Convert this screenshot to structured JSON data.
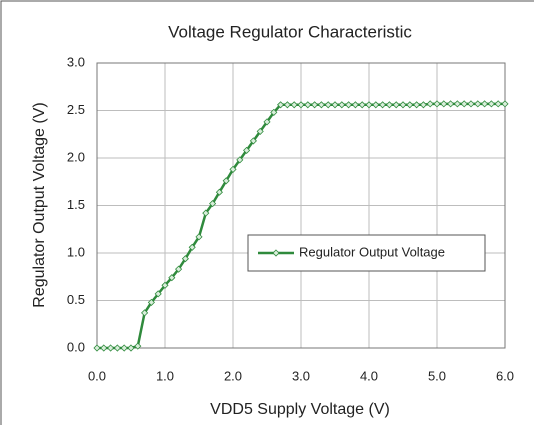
{
  "chart_data": {
    "type": "line",
    "title": "Voltage Regulator Characteristic",
    "x_label": "VDD5 Supply Voltage (V)",
    "y_label": "Regulator Output Voltage (V)",
    "x": [
      0.0,
      0.1,
      0.2,
      0.3,
      0.4,
      0.5,
      0.6,
      0.7,
      0.8,
      0.9,
      1.0,
      1.1,
      1.2,
      1.3,
      1.4,
      1.5,
      1.6,
      1.7,
      1.8,
      1.9,
      2.0,
      2.1,
      2.2,
      2.3,
      2.4,
      2.5,
      2.6,
      2.7,
      2.8,
      2.9,
      3.0,
      3.1,
      3.2,
      3.3,
      3.4,
      3.5,
      3.6,
      3.7,
      3.8,
      3.9,
      4.0,
      4.1,
      4.2,
      4.3,
      4.4,
      4.5,
      4.6,
      4.7,
      4.8,
      4.9,
      5.0,
      5.1,
      5.2,
      5.3,
      5.4,
      5.5,
      5.6,
      5.7,
      5.8,
      5.9,
      6.0
    ],
    "series": [
      {
        "name": "Regulator Output Voltage",
        "color": "#2f8a3c",
        "values": [
          0,
          0,
          0,
          0,
          0,
          0,
          0.02,
          0.37,
          0.48,
          0.57,
          0.66,
          0.74,
          0.83,
          0.94,
          1.06,
          1.17,
          1.42,
          1.52,
          1.64,
          1.76,
          1.88,
          1.98,
          2.08,
          2.18,
          2.28,
          2.38,
          2.48,
          2.56,
          2.56,
          2.56,
          2.56,
          2.56,
          2.56,
          2.56,
          2.56,
          2.56,
          2.56,
          2.56,
          2.56,
          2.56,
          2.56,
          2.56,
          2.56,
          2.56,
          2.56,
          2.56,
          2.56,
          2.56,
          2.56,
          2.57,
          2.57,
          2.57,
          2.57,
          2.57,
          2.57,
          2.57,
          2.57,
          2.57,
          2.57,
          2.57,
          2.57
        ]
      }
    ],
    "xlim": [
      0,
      6
    ],
    "xticks": [
      {
        "value": 0,
        "label": "0.0"
      },
      {
        "value": 1,
        "label": "1.0"
      },
      {
        "value": 2,
        "label": "2.0"
      },
      {
        "value": 3,
        "label": "3.0"
      },
      {
        "value": 4,
        "label": "4.0"
      },
      {
        "value": 5,
        "label": "5.0"
      },
      {
        "value": 6,
        "label": "6.0"
      }
    ],
    "ylim": [
      0,
      3
    ],
    "yticks": [
      {
        "value": 0,
        "label": "0.0"
      },
      {
        "value": 0.5,
        "label": "0.5"
      },
      {
        "value": 1,
        "label": "1.0"
      },
      {
        "value": 1.5,
        "label": "1.5"
      },
      {
        "value": 2,
        "label": "2.0"
      },
      {
        "value": 2.5,
        "label": "2.5"
      },
      {
        "value": 3,
        "label": "3.0"
      }
    ],
    "grid": true,
    "legend": "right"
  }
}
